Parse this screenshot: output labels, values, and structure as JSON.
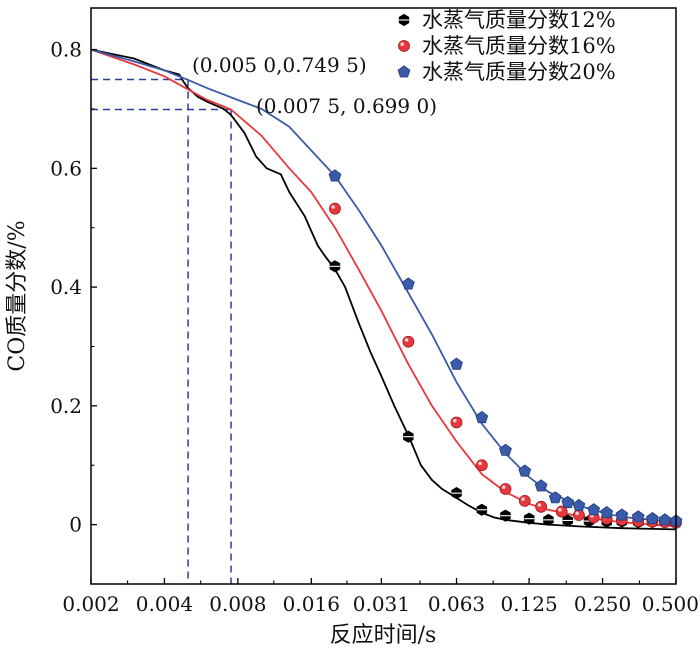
{
  "chart_data": {
    "type": "line",
    "x_scale": "log2",
    "xlabel": "反应时间/s",
    "ylabel": "CO质量分数/%",
    "xlim": [
      0.002,
      0.5
    ],
    "ylim": [
      -0.1,
      0.87
    ],
    "x_ticks": [
      0.002,
      0.004,
      0.008,
      0.016,
      0.031,
      0.063,
      0.125,
      0.25,
      0.5
    ],
    "x_tick_labels": [
      "0.002",
      "0.004",
      "0.008",
      "0.016",
      "0.031",
      "0.063",
      "0.125",
      "0.250",
      "0.500"
    ],
    "y_ticks": [
      0,
      0.2,
      0.4,
      0.6,
      0.8
    ],
    "y_tick_labels": [
      "0",
      "0.2",
      "0.4",
      "0.6",
      "0.8"
    ],
    "grid": false,
    "legend_position": "top-right",
    "series": [
      {
        "name": "水蒸气质量分数12%",
        "color": "#000000",
        "marker": "hexagon",
        "curve": [
          [
            0.002,
            0.8
          ],
          [
            0.003,
            0.785
          ],
          [
            0.004,
            0.765
          ],
          [
            0.0046,
            0.758
          ],
          [
            0.0048,
            0.745
          ],
          [
            0.005,
            0.735
          ],
          [
            0.0055,
            0.72
          ],
          [
            0.006,
            0.712
          ],
          [
            0.007,
            0.7
          ],
          [
            0.0075,
            0.69
          ],
          [
            0.0085,
            0.66
          ],
          [
            0.0095,
            0.62
          ],
          [
            0.0105,
            0.6
          ],
          [
            0.012,
            0.59
          ],
          [
            0.013,
            0.56
          ],
          [
            0.015,
            0.52
          ],
          [
            0.017,
            0.47
          ],
          [
            0.018,
            0.455
          ],
          [
            0.02,
            0.43
          ],
          [
            0.022,
            0.4
          ],
          [
            0.025,
            0.34
          ],
          [
            0.028,
            0.29
          ],
          [
            0.031,
            0.25
          ],
          [
            0.035,
            0.2
          ],
          [
            0.04,
            0.15
          ],
          [
            0.045,
            0.1
          ],
          [
            0.05,
            0.075
          ],
          [
            0.055,
            0.06
          ],
          [
            0.063,
            0.045
          ],
          [
            0.07,
            0.033
          ],
          [
            0.08,
            0.02
          ],
          [
            0.09,
            0.012
          ],
          [
            0.1,
            0.008
          ],
          [
            0.125,
            0.003
          ],
          [
            0.15,
            0.0
          ],
          [
            0.2,
            -0.003
          ],
          [
            0.3,
            -0.006
          ],
          [
            0.5,
            -0.008
          ]
        ],
        "points": [
          [
            0.02,
            0.435
          ],
          [
            0.04,
            0.148
          ],
          [
            0.063,
            0.053
          ],
          [
            0.08,
            0.025
          ],
          [
            0.1,
            0.015
          ],
          [
            0.125,
            0.01
          ],
          [
            0.15,
            0.008
          ],
          [
            0.18,
            0.007
          ],
          [
            0.22,
            0.006
          ],
          [
            0.26,
            0.005
          ],
          [
            0.3,
            0.005
          ],
          [
            0.35,
            0.004
          ],
          [
            0.4,
            0.004
          ],
          [
            0.45,
            0.004
          ],
          [
            0.5,
            0.004
          ]
        ]
      },
      {
        "name": "水蒸气质量分数16%",
        "color": "#e8383d",
        "marker": "circle",
        "curve": [
          [
            0.002,
            0.8
          ],
          [
            0.003,
            0.775
          ],
          [
            0.004,
            0.755
          ],
          [
            0.005,
            0.733
          ],
          [
            0.006,
            0.715
          ],
          [
            0.0075,
            0.699
          ],
          [
            0.01,
            0.655
          ],
          [
            0.013,
            0.6
          ],
          [
            0.016,
            0.56
          ],
          [
            0.02,
            0.5
          ],
          [
            0.025,
            0.43
          ],
          [
            0.031,
            0.36
          ],
          [
            0.04,
            0.27
          ],
          [
            0.05,
            0.2
          ],
          [
            0.063,
            0.14
          ],
          [
            0.08,
            0.085
          ],
          [
            0.1,
            0.055
          ],
          [
            0.125,
            0.035
          ],
          [
            0.15,
            0.025
          ],
          [
            0.2,
            0.014
          ],
          [
            0.25,
            0.008
          ],
          [
            0.3,
            0.004
          ],
          [
            0.4,
            0.0
          ],
          [
            0.5,
            -0.003
          ]
        ],
        "points": [
          [
            0.02,
            0.532
          ],
          [
            0.04,
            0.308
          ],
          [
            0.063,
            0.172
          ],
          [
            0.08,
            0.1
          ],
          [
            0.1,
            0.06
          ],
          [
            0.12,
            0.04
          ],
          [
            0.14,
            0.03
          ],
          [
            0.17,
            0.022
          ],
          [
            0.2,
            0.016
          ],
          [
            0.23,
            0.012
          ],
          [
            0.26,
            0.01
          ],
          [
            0.3,
            0.008
          ],
          [
            0.35,
            0.006
          ],
          [
            0.4,
            0.005
          ],
          [
            0.45,
            0.004
          ],
          [
            0.5,
            0.003
          ]
        ]
      },
      {
        "name": "水蒸气质量分数20%",
        "color": "#3a5ba8",
        "marker": "pentagon",
        "curve": [
          [
            0.002,
            0.8
          ],
          [
            0.003,
            0.78
          ],
          [
            0.004,
            0.765
          ],
          [
            0.005,
            0.749
          ],
          [
            0.006,
            0.735
          ],
          [
            0.008,
            0.715
          ],
          [
            0.01,
            0.7
          ],
          [
            0.013,
            0.67
          ],
          [
            0.016,
            0.63
          ],
          [
            0.02,
            0.587
          ],
          [
            0.025,
            0.53
          ],
          [
            0.031,
            0.47
          ],
          [
            0.04,
            0.39
          ],
          [
            0.05,
            0.32
          ],
          [
            0.063,
            0.24
          ],
          [
            0.08,
            0.17
          ],
          [
            0.1,
            0.12
          ],
          [
            0.125,
            0.08
          ],
          [
            0.15,
            0.055
          ],
          [
            0.2,
            0.032
          ],
          [
            0.25,
            0.02
          ],
          [
            0.3,
            0.013
          ],
          [
            0.4,
            0.008
          ],
          [
            0.5,
            0.005
          ]
        ],
        "points": [
          [
            0.02,
            0.587
          ],
          [
            0.04,
            0.405
          ],
          [
            0.063,
            0.27
          ],
          [
            0.08,
            0.18
          ],
          [
            0.1,
            0.125
          ],
          [
            0.12,
            0.09
          ],
          [
            0.14,
            0.065
          ],
          [
            0.16,
            0.045
          ],
          [
            0.18,
            0.037
          ],
          [
            0.2,
            0.032
          ],
          [
            0.23,
            0.025
          ],
          [
            0.26,
            0.02
          ],
          [
            0.3,
            0.016
          ],
          [
            0.35,
            0.013
          ],
          [
            0.4,
            0.01
          ],
          [
            0.45,
            0.008
          ],
          [
            0.5,
            0.006
          ]
        ]
      }
    ],
    "reference_lines": [
      {
        "x": 0.005,
        "y": 0.7495,
        "label": "(0.005 0,0.749 5)",
        "color": "#2b3f9e"
      },
      {
        "x": 0.0075,
        "y": 0.699,
        "label": "(0.007 5, 0.699 0)",
        "color": "#2b3f9e"
      }
    ]
  }
}
